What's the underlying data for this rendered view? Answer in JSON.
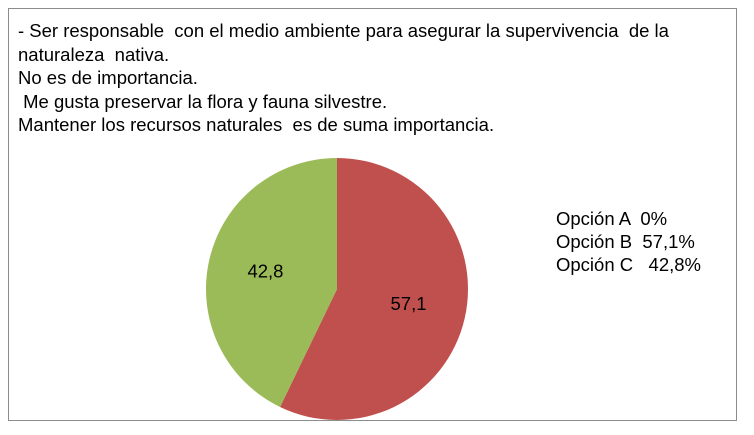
{
  "question_lines": [
    "- Ser responsable  con el medio ambiente para asegurar la supervivencia  de la",
    "naturaleza  nativa.",
    "No es de importancia.",
    " Me gusta preservar la flora y fauna silvestre.",
    "Mantener los recursos naturales  es de suma importancia."
  ],
  "legend_lines": [
    "Opción A  0%",
    "Opción B  57,1%",
    "Opción C   42,8%"
  ],
  "chart_data": {
    "type": "pie",
    "slices": [
      {
        "label": "57,1",
        "value": 57.1,
        "color": "#c0504d"
      },
      {
        "label": "42,8",
        "value": 42.8,
        "color": "#9bbb59"
      }
    ],
    "start_angle_deg": 0,
    "direction": "clockwise",
    "title": "",
    "legend": "right"
  }
}
